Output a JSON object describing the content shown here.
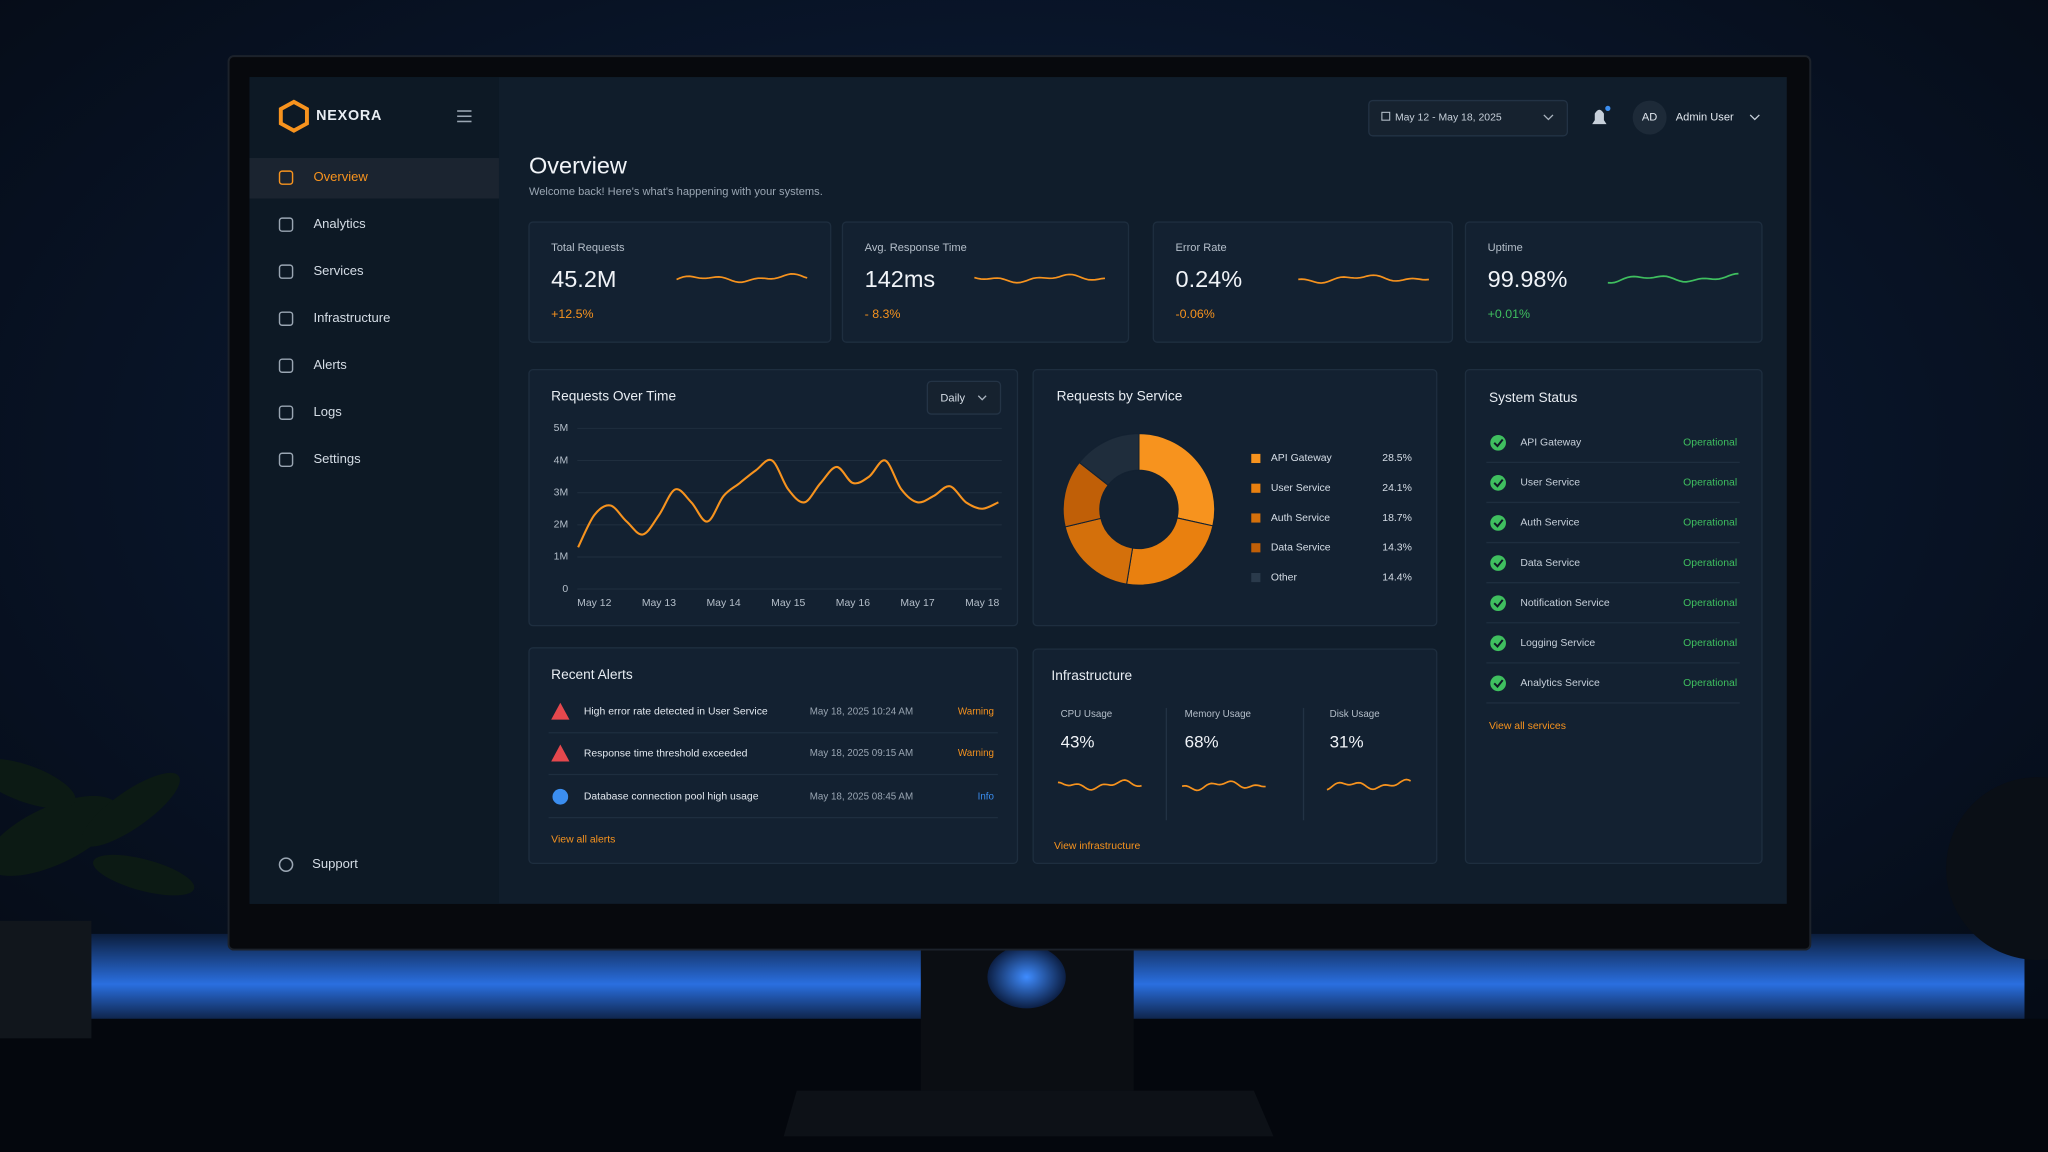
{
  "brand": "NEXORA",
  "nav": [
    "Overview",
    "Analytics",
    "Services",
    "Infrastructure",
    "Alerts",
    "Logs",
    "Settings"
  ],
  "support": "Support",
  "header": {
    "date_range": "May 12 - May 18, 2025",
    "avatar": "AD",
    "user": "Admin User"
  },
  "page": {
    "title": "Overview",
    "subtitle": "Welcome back! Here's what's happening with your systems."
  },
  "kpis": [
    {
      "label": "Total Requests",
      "value": "45.2M",
      "change": "+12.5%"
    },
    {
      "label": "Avg. Response Time",
      "value": "142ms",
      "change": "- 8.3%"
    },
    {
      "label": "Error Rate",
      "value": "0.24%",
      "change": "-0.06%"
    },
    {
      "label": "Uptime",
      "value": "99.98%",
      "change": "+0.01%"
    }
  ],
  "requests_chart": {
    "type": "line",
    "title": "Requests Over Time",
    "period": "Daily",
    "categories": [
      null,
      "May 12",
      null,
      null,
      null,
      "May 13",
      null,
      null,
      null,
      "May 14",
      null,
      null,
      null,
      "May 15",
      null,
      null,
      null,
      "May 16",
      null,
      null,
      null,
      "May 17",
      null,
      null,
      null,
      "May 18",
      null
    ],
    "values": [
      1300000,
      2300000,
      2600000,
      2100000,
      1700000,
      2300000,
      3100000,
      2700000,
      2100000,
      2900000,
      3300000,
      3700000,
      4000000,
      3100000,
      2700000,
      3300000,
      3800000,
      3300000,
      3500000,
      4000000,
      3100000,
      2700000,
      2900000,
      3200000,
      2700000,
      2500000,
      2700000
    ],
    "color": "#f7931e",
    "ylim": [
      0,
      5000000
    ],
    "yticks": [
      0,
      {
        "value": 1000000,
        "label": "1M"
      },
      {
        "value": 2000000,
        "label": "2M"
      },
      {
        "value": 3000000,
        "label": "3M"
      },
      {
        "value": 4000000,
        "label": "4M"
      },
      {
        "value": 5000000,
        "label": "5M"
      }
    ],
    "grid": true
  },
  "service_chart": {
    "type": "pie",
    "title": "Requests by Service",
    "categories": [
      "API Gateway",
      "User Service",
      "Auth Service",
      "Data Service",
      "Other"
    ],
    "values": [
      28.5,
      24.1,
      18.7,
      14.3,
      14.4
    ],
    "value_labels": [
      "28.5%",
      "24.1%",
      "18.7%",
      "14.3%",
      "14.4%"
    ],
    "colors": [
      "#f7931e",
      "#e9800f",
      "#d4700b",
      "#c05f07",
      "#1f2d3c"
    ]
  },
  "system_status": {
    "title": "System Status",
    "services": [
      {
        "name": "API Gateway",
        "status": "Operational"
      },
      {
        "name": "User Service",
        "status": "Operational"
      },
      {
        "name": "Auth Service",
        "status": "Operational"
      },
      {
        "name": "Data Service",
        "status": "Operational"
      },
      {
        "name": "Notification Service",
        "status": "Operational"
      },
      {
        "name": "Logging Service",
        "status": "Operational"
      },
      {
        "name": "Analytics Service",
        "status": "Operational"
      }
    ],
    "link": "View all services"
  },
  "alerts": {
    "title": "Recent Alerts",
    "rows": [
      {
        "message": "High error rate detected in User Service",
        "time": "May 18, 2025 10:24 AM",
        "level": "Warning"
      },
      {
        "message": "Response time threshold exceeded",
        "time": "May 18, 2025 09:15 AM",
        "level": "Warning"
      },
      {
        "message": "Database connection pool high usage",
        "time": "May 18, 2025 08:45 AM",
        "level": "Info"
      }
    ],
    "link": "View all alerts"
  },
  "infrastructure": {
    "title": "Infrastructure",
    "metrics": [
      {
        "label": "CPU Usage",
        "value": "43%"
      },
      {
        "label": "Memory Usage",
        "value": "68%"
      },
      {
        "label": "Disk Usage",
        "value": "31%"
      }
    ],
    "link": "View infrastructure"
  }
}
